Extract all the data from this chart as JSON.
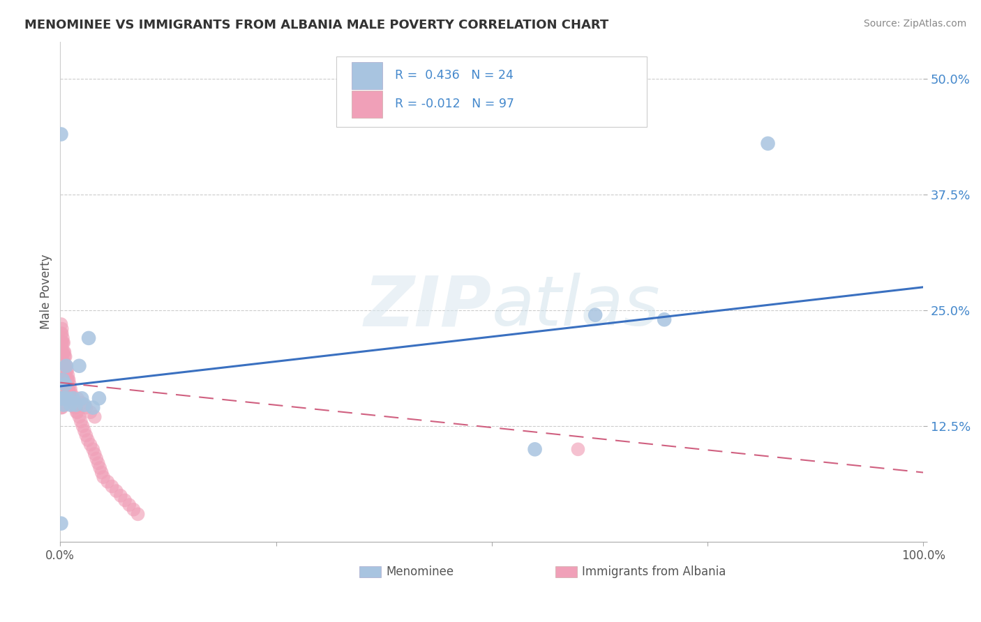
{
  "title": "MENOMINEE VS IMMIGRANTS FROM ALBANIA MALE POVERTY CORRELATION CHART",
  "source": "Source: ZipAtlas.com",
  "ylabel": "Male Poverty",
  "yticks": [
    0.0,
    0.125,
    0.25,
    0.375,
    0.5
  ],
  "ytick_labels": [
    "",
    "12.5%",
    "25.0%",
    "37.5%",
    "50.0%"
  ],
  "xlim": [
    0.0,
    1.0
  ],
  "ylim": [
    0.0,
    0.54
  ],
  "menominee_R": 0.436,
  "menominee_N": 24,
  "albania_R": -0.012,
  "albania_N": 97,
  "menominee_color": "#a8c4e0",
  "albania_color": "#f0a0b8",
  "trendline_menominee_color": "#3a70c0",
  "trendline_albania_color": "#d06080",
  "background_color": "#ffffff",
  "menominee_x": [
    0.001,
    0.001,
    0.002,
    0.003,
    0.003,
    0.004,
    0.005,
    0.006,
    0.007,
    0.009,
    0.012,
    0.015,
    0.018,
    0.022,
    0.025,
    0.028,
    0.033,
    0.038,
    0.045,
    0.55,
    0.62,
    0.7,
    0.82,
    0.003
  ],
  "menominee_y": [
    0.44,
    0.02,
    0.155,
    0.175,
    0.155,
    0.148,
    0.155,
    0.17,
    0.19,
    0.155,
    0.148,
    0.155,
    0.148,
    0.19,
    0.155,
    0.148,
    0.22,
    0.145,
    0.155,
    0.1,
    0.245,
    0.24,
    0.43,
    0.155
  ],
  "albania_outlier_x": [
    0.6
  ],
  "albania_outlier_y": [
    0.1
  ],
  "albania_cluster_x": [
    0.001,
    0.001,
    0.001,
    0.001,
    0.001,
    0.001,
    0.001,
    0.001,
    0.001,
    0.001,
    0.002,
    0.002,
    0.002,
    0.002,
    0.002,
    0.002,
    0.002,
    0.002,
    0.002,
    0.002,
    0.003,
    0.003,
    0.003,
    0.003,
    0.003,
    0.003,
    0.003,
    0.003,
    0.004,
    0.004,
    0.004,
    0.004,
    0.004,
    0.004,
    0.005,
    0.005,
    0.005,
    0.005,
    0.005,
    0.005,
    0.006,
    0.006,
    0.006,
    0.006,
    0.006,
    0.007,
    0.007,
    0.007,
    0.007,
    0.008,
    0.008,
    0.008,
    0.009,
    0.009,
    0.009,
    0.01,
    0.01,
    0.011,
    0.011,
    0.012,
    0.012,
    0.013,
    0.014,
    0.015,
    0.016,
    0.017,
    0.018,
    0.019,
    0.02,
    0.022,
    0.024,
    0.026,
    0.028,
    0.03,
    0.032,
    0.035,
    0.038,
    0.04,
    0.042,
    0.044,
    0.046,
    0.048,
    0.05,
    0.055,
    0.06,
    0.065,
    0.07,
    0.075,
    0.08,
    0.085,
    0.09,
    0.02,
    0.025,
    0.03,
    0.035,
    0.04
  ],
  "albania_cluster_y": [
    0.235,
    0.225,
    0.215,
    0.205,
    0.195,
    0.185,
    0.175,
    0.165,
    0.155,
    0.145,
    0.23,
    0.225,
    0.215,
    0.205,
    0.195,
    0.185,
    0.175,
    0.165,
    0.155,
    0.145,
    0.22,
    0.215,
    0.205,
    0.195,
    0.185,
    0.175,
    0.165,
    0.155,
    0.215,
    0.205,
    0.195,
    0.185,
    0.175,
    0.165,
    0.205,
    0.2,
    0.19,
    0.18,
    0.17,
    0.16,
    0.2,
    0.19,
    0.18,
    0.17,
    0.16,
    0.19,
    0.185,
    0.175,
    0.165,
    0.185,
    0.175,
    0.165,
    0.18,
    0.175,
    0.165,
    0.175,
    0.165,
    0.17,
    0.16,
    0.165,
    0.155,
    0.16,
    0.155,
    0.15,
    0.15,
    0.145,
    0.145,
    0.14,
    0.14,
    0.135,
    0.13,
    0.125,
    0.12,
    0.115,
    0.11,
    0.105,
    0.1,
    0.095,
    0.09,
    0.085,
    0.08,
    0.075,
    0.07,
    0.065,
    0.06,
    0.055,
    0.05,
    0.045,
    0.04,
    0.035,
    0.03,
    0.155,
    0.15,
    0.145,
    0.14,
    0.135
  ],
  "trendline_men_x0": 0.0,
  "trendline_men_y0": 0.168,
  "trendline_men_x1": 1.0,
  "trendline_men_y1": 0.275,
  "trendline_alb_x0": 0.0,
  "trendline_alb_y0": 0.172,
  "trendline_alb_x1": 1.0,
  "trendline_alb_y1": 0.075
}
